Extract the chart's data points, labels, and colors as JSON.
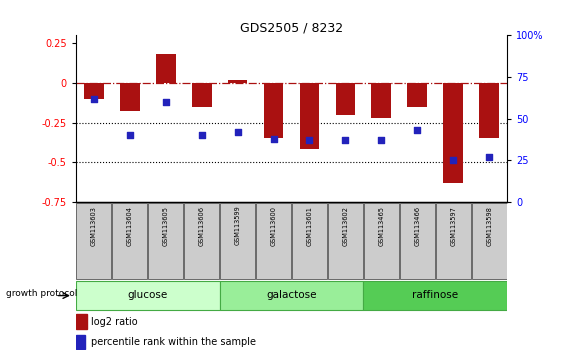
{
  "title": "GDS2505 / 8232",
  "samples": [
    "GSM113603",
    "GSM113604",
    "GSM113605",
    "GSM113606",
    "GSM113599",
    "GSM113600",
    "GSM113601",
    "GSM113602",
    "GSM113465",
    "GSM113466",
    "GSM113597",
    "GSM113598"
  ],
  "log2_ratio": [
    -0.1,
    -0.18,
    0.18,
    -0.15,
    0.02,
    -0.35,
    -0.42,
    -0.2,
    -0.22,
    -0.15,
    -0.63,
    -0.35
  ],
  "percentile_rank": [
    62,
    40,
    60,
    40,
    42,
    38,
    37,
    37,
    37,
    43,
    25,
    27
  ],
  "groups": [
    {
      "name": "glucose",
      "start": 0,
      "end": 4,
      "color": "#ccffcc"
    },
    {
      "name": "galactose",
      "start": 4,
      "end": 8,
      "color": "#99ee99"
    },
    {
      "name": "raffinose",
      "start": 8,
      "end": 12,
      "color": "#55cc55"
    }
  ],
  "bar_color": "#aa1111",
  "dot_color": "#2222bb",
  "ylim_left": [
    -0.75,
    0.3
  ],
  "ylim_right": [
    0,
    100
  ],
  "yticks_left": [
    -0.75,
    -0.5,
    -0.25,
    0,
    0.25
  ],
  "yticks_right": [
    0,
    25,
    50,
    75,
    100
  ],
  "hline_y": 0,
  "dotted_lines": [
    -0.25,
    -0.5
  ],
  "bg_color": "#ffffff",
  "group_border_color": "#44aa44",
  "label_bg_color": "#cccccc",
  "growth_protocol_label": "growth protocol"
}
